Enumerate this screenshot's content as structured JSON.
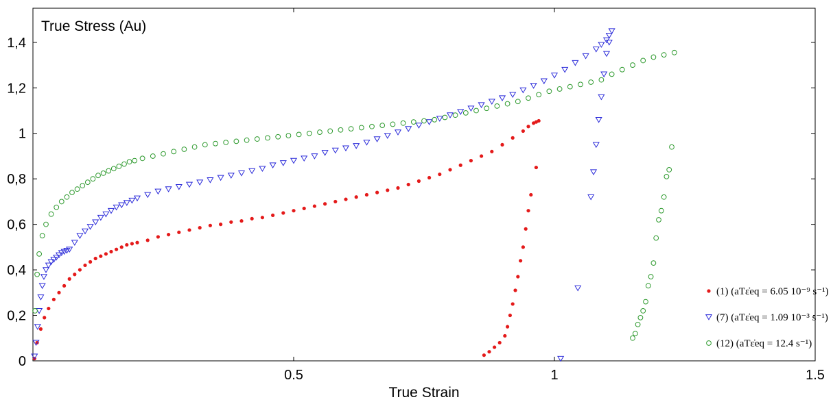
{
  "chart_data": {
    "type": "scatter",
    "title": "",
    "ylabel": "True Stress (Au)",
    "xlabel": "True Strain",
    "xlim": [
      0,
      1.5
    ],
    "ylim": [
      0,
      1.55
    ],
    "x_ticks": [
      {
        "value": 0.5,
        "label": "0.5"
      },
      {
        "value": 1.0,
        "label": "1"
      },
      {
        "value": 1.5,
        "label": "1.5"
      }
    ],
    "y_ticks": [
      {
        "value": 0.0,
        "label": "0"
      },
      {
        "value": 0.2,
        "label": "0,2"
      },
      {
        "value": 0.4,
        "label": "0,4"
      },
      {
        "value": 0.6,
        "label": "0,6"
      },
      {
        "value": 0.8,
        "label": "0,8"
      },
      {
        "value": 1.0,
        "label": "1"
      },
      {
        "value": 1.2,
        "label": "1,2"
      },
      {
        "value": 1.4,
        "label": "1,4"
      }
    ],
    "grid": false,
    "legend_position": "bottom-right",
    "series": [
      {
        "name": "(1) (a_T ε̇_eq = 6.05 10^-9 s^-1)",
        "legend_label": "(1)  (aTε̇eq = 6.05 10⁻⁹ s⁻¹)",
        "color": "#e41a1a",
        "marker": "dot",
        "x": [
          0.003,
          0.008,
          0.015,
          0.022,
          0.03,
          0.04,
          0.05,
          0.06,
          0.07,
          0.08,
          0.09,
          0.1,
          0.11,
          0.12,
          0.13,
          0.14,
          0.15,
          0.16,
          0.17,
          0.18,
          0.19,
          0.2,
          0.22,
          0.24,
          0.26,
          0.28,
          0.3,
          0.32,
          0.34,
          0.36,
          0.38,
          0.4,
          0.42,
          0.44,
          0.46,
          0.48,
          0.5,
          0.52,
          0.54,
          0.56,
          0.58,
          0.6,
          0.62,
          0.64,
          0.66,
          0.68,
          0.7,
          0.72,
          0.74,
          0.76,
          0.78,
          0.8,
          0.82,
          0.84,
          0.86,
          0.88,
          0.9,
          0.92,
          0.94,
          0.95,
          0.96,
          0.965,
          0.97,
          0.965,
          0.955,
          0.95,
          0.945,
          0.94,
          0.935,
          0.93,
          0.925,
          0.92,
          0.915,
          0.91,
          0.905,
          0.895,
          0.885,
          0.875,
          0.865
        ],
        "y": [
          0.01,
          0.08,
          0.14,
          0.19,
          0.23,
          0.27,
          0.3,
          0.33,
          0.36,
          0.38,
          0.4,
          0.42,
          0.435,
          0.45,
          0.46,
          0.47,
          0.48,
          0.49,
          0.5,
          0.51,
          0.515,
          0.52,
          0.53,
          0.545,
          0.555,
          0.565,
          0.575,
          0.585,
          0.595,
          0.6,
          0.61,
          0.615,
          0.625,
          0.63,
          0.64,
          0.65,
          0.66,
          0.67,
          0.68,
          0.69,
          0.7,
          0.71,
          0.72,
          0.73,
          0.74,
          0.75,
          0.76,
          0.775,
          0.79,
          0.805,
          0.82,
          0.84,
          0.86,
          0.88,
          0.9,
          0.92,
          0.95,
          0.98,
          1.01,
          1.03,
          1.045,
          1.05,
          1.055,
          0.85,
          0.73,
          0.66,
          0.58,
          0.5,
          0.44,
          0.37,
          0.31,
          0.25,
          0.2,
          0.15,
          0.11,
          0.08,
          0.06,
          0.04,
          0.025
        ]
      },
      {
        "name": "(7) (a_T ε̇_eq = 1.09 10^-3 s^-1)",
        "legend_label": "(7)  (aTε̇eq = 1.09 10⁻³ s⁻¹)",
        "color": "#2b2bd9",
        "marker": "triangle-down",
        "x": [
          0.003,
          0.006,
          0.009,
          0.012,
          0.015,
          0.018,
          0.021,
          0.025,
          0.03,
          0.035,
          0.04,
          0.045,
          0.05,
          0.055,
          0.06,
          0.065,
          0.07,
          0.08,
          0.09,
          0.1,
          0.11,
          0.12,
          0.13,
          0.14,
          0.15,
          0.16,
          0.17,
          0.18,
          0.19,
          0.2,
          0.22,
          0.24,
          0.26,
          0.28,
          0.3,
          0.32,
          0.34,
          0.36,
          0.38,
          0.4,
          0.42,
          0.44,
          0.46,
          0.48,
          0.5,
          0.52,
          0.54,
          0.56,
          0.58,
          0.6,
          0.62,
          0.64,
          0.66,
          0.68,
          0.7,
          0.72,
          0.74,
          0.76,
          0.78,
          0.8,
          0.82,
          0.84,
          0.86,
          0.88,
          0.9,
          0.92,
          0.94,
          0.96,
          0.98,
          1.0,
          1.02,
          1.04,
          1.06,
          1.08,
          1.09,
          1.1,
          1.105,
          1.11,
          1.105,
          1.1,
          1.095,
          1.09,
          1.085,
          1.08,
          1.075,
          1.07,
          1.045,
          1.012
        ],
        "y": [
          0.02,
          0.08,
          0.15,
          0.22,
          0.28,
          0.33,
          0.37,
          0.4,
          0.42,
          0.435,
          0.445,
          0.455,
          0.465,
          0.475,
          0.48,
          0.485,
          0.49,
          0.52,
          0.55,
          0.57,
          0.59,
          0.61,
          0.63,
          0.645,
          0.66,
          0.675,
          0.685,
          0.695,
          0.705,
          0.715,
          0.73,
          0.745,
          0.755,
          0.765,
          0.775,
          0.785,
          0.795,
          0.805,
          0.815,
          0.825,
          0.835,
          0.845,
          0.86,
          0.87,
          0.88,
          0.89,
          0.9,
          0.915,
          0.925,
          0.935,
          0.945,
          0.96,
          0.975,
          0.99,
          1.005,
          1.02,
          1.035,
          1.05,
          1.065,
          1.08,
          1.095,
          1.11,
          1.125,
          1.14,
          1.155,
          1.17,
          1.19,
          1.21,
          1.23,
          1.255,
          1.28,
          1.31,
          1.34,
          1.37,
          1.39,
          1.41,
          1.43,
          1.45,
          1.4,
          1.35,
          1.26,
          1.16,
          1.06,
          0.95,
          0.83,
          0.72,
          0.32,
          0.01
        ]
      },
      {
        "name": "(12) (a_T ε̇_eq = 12.4 s^-1)",
        "legend_label": "(12)  (aTε̇eq = 12.4 s⁻¹)",
        "color": "#2e9a2e",
        "marker": "circle",
        "x": [
          0.004,
          0.008,
          0.012,
          0.018,
          0.025,
          0.035,
          0.045,
          0.055,
          0.065,
          0.075,
          0.085,
          0.095,
          0.105,
          0.115,
          0.125,
          0.135,
          0.145,
          0.155,
          0.165,
          0.175,
          0.185,
          0.195,
          0.21,
          0.23,
          0.25,
          0.27,
          0.29,
          0.31,
          0.33,
          0.35,
          0.37,
          0.39,
          0.41,
          0.43,
          0.45,
          0.47,
          0.49,
          0.51,
          0.53,
          0.55,
          0.57,
          0.59,
          0.61,
          0.63,
          0.65,
          0.67,
          0.69,
          0.71,
          0.73,
          0.75,
          0.77,
          0.79,
          0.81,
          0.83,
          0.85,
          0.87,
          0.89,
          0.91,
          0.93,
          0.95,
          0.97,
          0.99,
          1.01,
          1.03,
          1.05,
          1.07,
          1.09,
          1.11,
          1.13,
          1.15,
          1.17,
          1.19,
          1.21,
          1.23,
          1.225,
          1.22,
          1.215,
          1.21,
          1.205,
          1.2,
          1.195,
          1.19,
          1.185,
          1.18,
          1.175,
          1.17,
          1.165,
          1.16,
          1.155,
          1.15
        ],
        "y": [
          0.22,
          0.38,
          0.47,
          0.55,
          0.6,
          0.645,
          0.675,
          0.7,
          0.72,
          0.74,
          0.755,
          0.77,
          0.785,
          0.8,
          0.815,
          0.825,
          0.835,
          0.845,
          0.855,
          0.865,
          0.875,
          0.88,
          0.89,
          0.9,
          0.91,
          0.92,
          0.93,
          0.94,
          0.95,
          0.955,
          0.96,
          0.965,
          0.97,
          0.975,
          0.98,
          0.985,
          0.99,
          0.995,
          1.0,
          1.005,
          1.01,
          1.015,
          1.02,
          1.025,
          1.03,
          1.035,
          1.04,
          1.045,
          1.05,
          1.055,
          1.06,
          1.07,
          1.08,
          1.09,
          1.1,
          1.11,
          1.12,
          1.13,
          1.14,
          1.155,
          1.17,
          1.185,
          1.195,
          1.205,
          1.215,
          1.225,
          1.235,
          1.26,
          1.28,
          1.3,
          1.32,
          1.335,
          1.345,
          1.355,
          0.94,
          0.84,
          0.81,
          0.72,
          0.66,
          0.62,
          0.54,
          0.43,
          0.37,
          0.33,
          0.26,
          0.22,
          0.19,
          0.16,
          0.12,
          0.1
        ]
      }
    ]
  }
}
